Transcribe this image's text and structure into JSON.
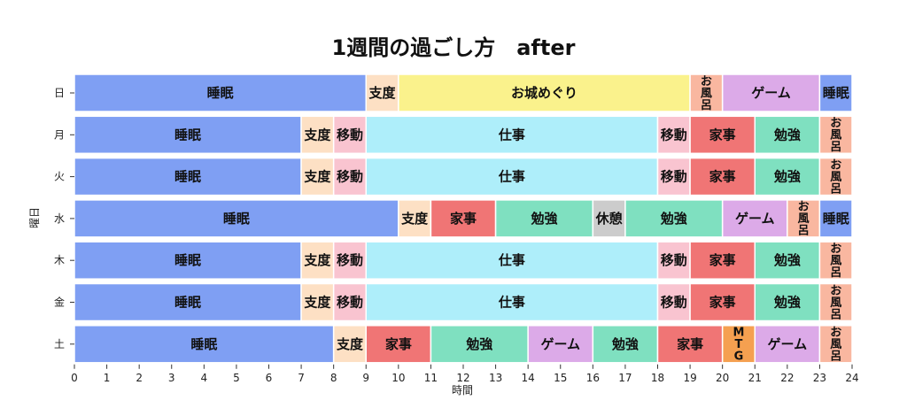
{
  "chart_data": {
    "type": "bar",
    "orientation": "horizontal",
    "stacked": true,
    "title": "1週間の過ごし方　after",
    "xlabel": "時間",
    "ylabel": "曜日",
    "xlim": [
      0,
      24
    ],
    "x_ticks": [
      0,
      1,
      2,
      3,
      4,
      5,
      6,
      7,
      8,
      9,
      10,
      11,
      12,
      13,
      14,
      15,
      16,
      17,
      18,
      19,
      20,
      21,
      22,
      23,
      24
    ],
    "grid": false,
    "legend": "none",
    "categories": [
      "日",
      "月",
      "火",
      "水",
      "木",
      "金",
      "土"
    ],
    "activity_colors": {
      "睡眠": "#7f9ff3",
      "支度": "#fde0c4",
      "お城めぐり": "#faf28c",
      "お風呂": "#f9b7a0",
      "ゲーム": "#dcaae8",
      "仕事": "#aeeefa",
      "移動": "#f9c4d0",
      "家事": "#f07575",
      "勉強": "#7fe0c0",
      "休憩": "#cccccc",
      "MTG": "#f5a050"
    },
    "rows": [
      {
        "day": "日",
        "segments": [
          {
            "label": "睡眠",
            "start": 0,
            "end": 9
          },
          {
            "label": "支度",
            "start": 9,
            "end": 10
          },
          {
            "label": "お城めぐり",
            "start": 10,
            "end": 19
          },
          {
            "label": "お風呂",
            "start": 19,
            "end": 20
          },
          {
            "label": "ゲーム",
            "start": 20,
            "end": 23
          },
          {
            "label": "睡眠",
            "start": 23,
            "end": 24
          }
        ]
      },
      {
        "day": "月",
        "segments": [
          {
            "label": "睡眠",
            "start": 0,
            "end": 7
          },
          {
            "label": "支度",
            "start": 7,
            "end": 8
          },
          {
            "label": "移動",
            "start": 8,
            "end": 9
          },
          {
            "label": "仕事",
            "start": 9,
            "end": 18
          },
          {
            "label": "移動",
            "start": 18,
            "end": 19
          },
          {
            "label": "家事",
            "start": 19,
            "end": 21
          },
          {
            "label": "勉強",
            "start": 21,
            "end": 23
          },
          {
            "label": "お風呂",
            "start": 23,
            "end": 24
          }
        ]
      },
      {
        "day": "火",
        "segments": [
          {
            "label": "睡眠",
            "start": 0,
            "end": 7
          },
          {
            "label": "支度",
            "start": 7,
            "end": 8
          },
          {
            "label": "移動",
            "start": 8,
            "end": 9
          },
          {
            "label": "仕事",
            "start": 9,
            "end": 18
          },
          {
            "label": "移動",
            "start": 18,
            "end": 19
          },
          {
            "label": "家事",
            "start": 19,
            "end": 21
          },
          {
            "label": "勉強",
            "start": 21,
            "end": 23
          },
          {
            "label": "お風呂",
            "start": 23,
            "end": 24
          }
        ]
      },
      {
        "day": "水",
        "segments": [
          {
            "label": "睡眠",
            "start": 0,
            "end": 10
          },
          {
            "label": "支度",
            "start": 10,
            "end": 11
          },
          {
            "label": "家事",
            "start": 11,
            "end": 13
          },
          {
            "label": "勉強",
            "start": 13,
            "end": 16
          },
          {
            "label": "休憩",
            "start": 16,
            "end": 17
          },
          {
            "label": "勉強",
            "start": 17,
            "end": 20
          },
          {
            "label": "ゲーム",
            "start": 20,
            "end": 22
          },
          {
            "label": "お風呂",
            "start": 22,
            "end": 23
          },
          {
            "label": "睡眠",
            "start": 23,
            "end": 24
          }
        ]
      },
      {
        "day": "木",
        "segments": [
          {
            "label": "睡眠",
            "start": 0,
            "end": 7
          },
          {
            "label": "支度",
            "start": 7,
            "end": 8
          },
          {
            "label": "移動",
            "start": 8,
            "end": 9
          },
          {
            "label": "仕事",
            "start": 9,
            "end": 18
          },
          {
            "label": "移動",
            "start": 18,
            "end": 19
          },
          {
            "label": "家事",
            "start": 19,
            "end": 21
          },
          {
            "label": "勉強",
            "start": 21,
            "end": 23
          },
          {
            "label": "お風呂",
            "start": 23,
            "end": 24
          }
        ]
      },
      {
        "day": "金",
        "segments": [
          {
            "label": "睡眠",
            "start": 0,
            "end": 7
          },
          {
            "label": "支度",
            "start": 7,
            "end": 8
          },
          {
            "label": "移動",
            "start": 8,
            "end": 9
          },
          {
            "label": "仕事",
            "start": 9,
            "end": 18
          },
          {
            "label": "移動",
            "start": 18,
            "end": 19
          },
          {
            "label": "家事",
            "start": 19,
            "end": 21
          },
          {
            "label": "勉強",
            "start": 21,
            "end": 23
          },
          {
            "label": "お風呂",
            "start": 23,
            "end": 24
          }
        ]
      },
      {
        "day": "土",
        "segments": [
          {
            "label": "睡眠",
            "start": 0,
            "end": 8
          },
          {
            "label": "支度",
            "start": 8,
            "end": 9
          },
          {
            "label": "家事",
            "start": 9,
            "end": 11
          },
          {
            "label": "勉強",
            "start": 11,
            "end": 14
          },
          {
            "label": "ゲーム",
            "start": 14,
            "end": 16
          },
          {
            "label": "勉強",
            "start": 16,
            "end": 18
          },
          {
            "label": "家事",
            "start": 18,
            "end": 20
          },
          {
            "label": "MTG",
            "start": 20,
            "end": 21
          },
          {
            "label": "ゲーム",
            "start": 21,
            "end": 23
          },
          {
            "label": "お風呂",
            "start": 23,
            "end": 24
          }
        ]
      }
    ]
  }
}
